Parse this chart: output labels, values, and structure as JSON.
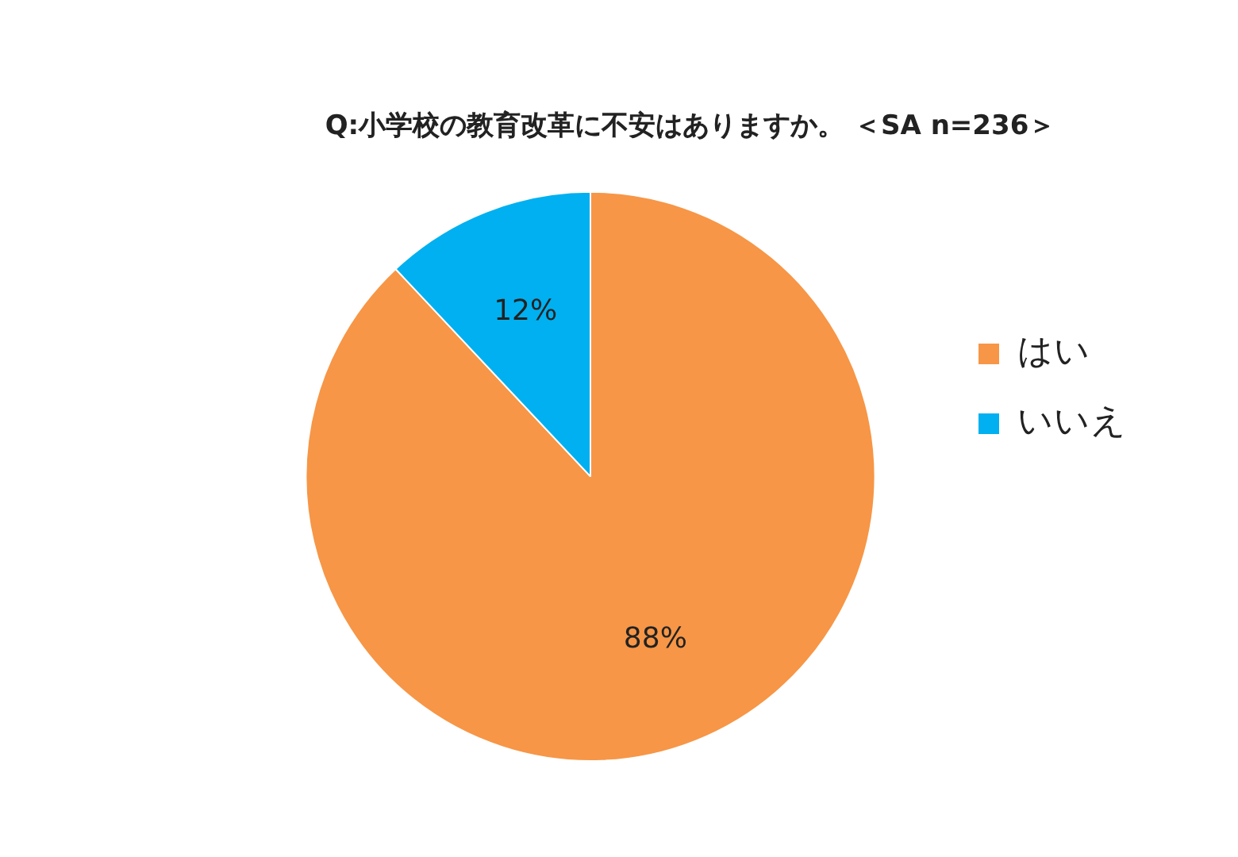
{
  "chart_data": {
    "type": "pie",
    "title": "Q:小学校の教育改革に不安はありますか。 ＜SA n=236＞",
    "categories": [
      "はい",
      "いいえ"
    ],
    "values": [
      88,
      12
    ],
    "colors": [
      "#f79646",
      "#00b0f0"
    ],
    "value_labels": [
      "88%",
      "12%"
    ],
    "legend": "right"
  }
}
